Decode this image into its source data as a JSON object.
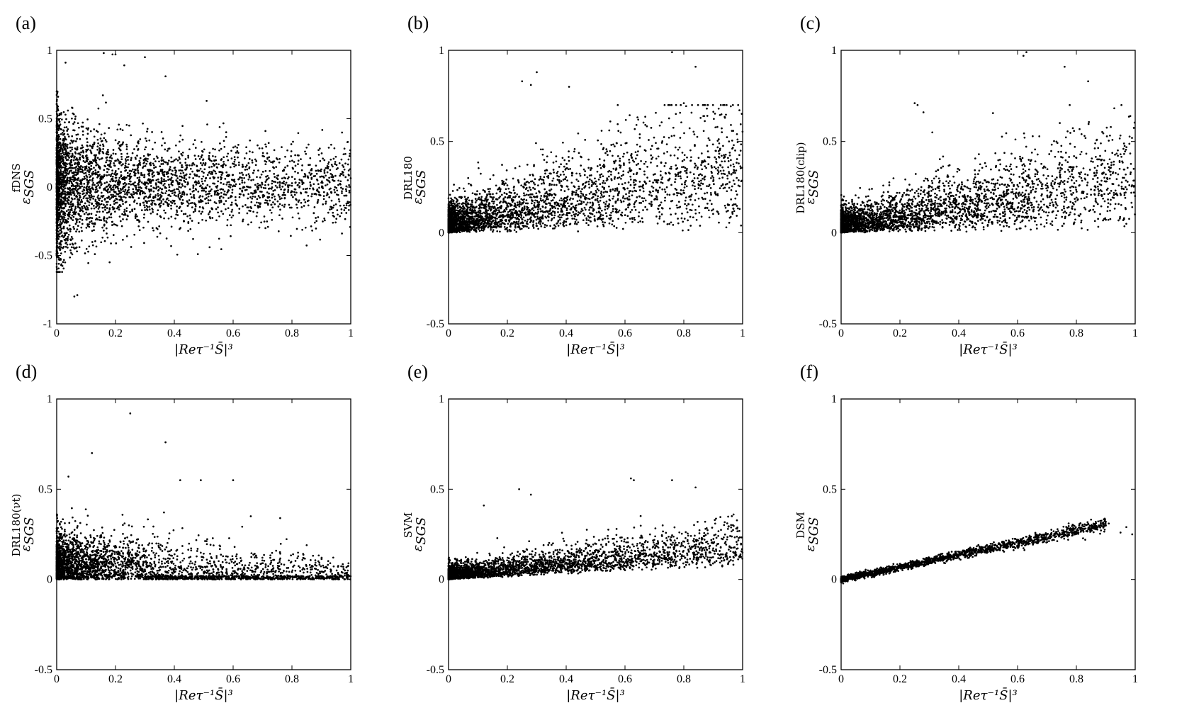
{
  "figure": {
    "marker_color": "#000000",
    "frame_color": "#000000"
  },
  "chart_data": [
    {
      "type": "scatter",
      "panel": "(a)",
      "xlabel": "|Reτ⁻¹S̄|³",
      "ylabel_symbol": "ε",
      "ylabel_sub": "SGS",
      "ylabel_sup": "fDNS",
      "xlim": [
        0,
        1
      ],
      "ylim": [
        -1,
        1
      ],
      "xticks": [
        "0",
        "0.2",
        "0.4",
        "0.6",
        "0.8",
        "1"
      ],
      "yticks": [
        "-1",
        "-0.5",
        "0",
        "0.5",
        "1"
      ],
      "ytick_values": [
        -1,
        -0.5,
        0,
        0.5,
        1
      ],
      "pattern": "symmetric",
      "n_points": 3500,
      "trend_slope": 0.0,
      "spread": 0.26,
      "points": [
        [
          0.16,
          0.98
        ],
        [
          0.19,
          0.97
        ],
        [
          0.2,
          0.97
        ],
        [
          0.3,
          0.95
        ],
        [
          0.03,
          0.91
        ],
        [
          0.37,
          0.81
        ],
        [
          0.23,
          0.89
        ],
        [
          0.51,
          0.63
        ],
        [
          0.74,
          0.27
        ],
        [
          0.71,
          0.41
        ],
        [
          0.99,
          0.33
        ],
        [
          0.92,
          0.14
        ],
        [
          0.94,
          -0.15
        ],
        [
          0.99,
          0.05
        ],
        [
          0.91,
          -0.23
        ],
        [
          0.71,
          -0.3
        ],
        [
          0.58,
          -0.28
        ],
        [
          0.48,
          -0.49
        ],
        [
          0.52,
          -0.44
        ],
        [
          0.06,
          -0.8
        ],
        [
          0.07,
          -0.79
        ],
        [
          0.18,
          -0.55
        ],
        [
          0.13,
          -0.49
        ],
        [
          0.62,
          0.18
        ],
        [
          0.8,
          0.01
        ]
      ]
    },
    {
      "type": "scatter",
      "panel": "(b)",
      "xlabel": "|Reτ⁻¹S̄|³",
      "ylabel_symbol": "ε",
      "ylabel_sub": "SGS",
      "ylabel_sup": "DRL180",
      "xlim": [
        0,
        1
      ],
      "ylim": [
        -0.5,
        1
      ],
      "xticks": [
        "0",
        "0.2",
        "0.4",
        "0.6",
        "0.8",
        "1"
      ],
      "yticks": [
        "-0.5",
        "0",
        "0.5",
        "1"
      ],
      "ytick_values": [
        -0.5,
        0,
        0.5,
        1
      ],
      "pattern": "positive",
      "n_points": 3200,
      "trend_slope": 0.3,
      "spread": 0.16,
      "points": [
        [
          0.76,
          0.99
        ],
        [
          0.84,
          0.91
        ],
        [
          0.3,
          0.88
        ],
        [
          0.25,
          0.83
        ],
        [
          0.28,
          0.81
        ],
        [
          0.41,
          0.8
        ],
        [
          0.94,
          0.63
        ],
        [
          0.8,
          0.71
        ],
        [
          0.91,
          0.39
        ],
        [
          0.97,
          0.48
        ],
        [
          0.99,
          0.13
        ],
        [
          0.98,
          0.3
        ],
        [
          0.65,
          0.52
        ],
        [
          0.55,
          0.61
        ]
      ]
    },
    {
      "type": "scatter",
      "panel": "(c)",
      "xlabel": "|Reτ⁻¹S̄|³",
      "ylabel_symbol": "ε",
      "ylabel_sub": "SGS",
      "ylabel_sup": "DRL180(clip)",
      "xlim": [
        0,
        1
      ],
      "ylim": [
        -0.5,
        1
      ],
      "xticks": [
        "0",
        "0.2",
        "0.4",
        "0.6",
        "0.8",
        "1"
      ],
      "yticks": [
        "-0.5",
        "0",
        "0.5",
        "1"
      ],
      "ytick_values": [
        -0.5,
        0,
        0.5,
        1
      ],
      "pattern": "positive",
      "n_points": 3200,
      "trend_slope": 0.24,
      "spread": 0.13,
      "points": [
        [
          0.62,
          0.97
        ],
        [
          0.63,
          0.99
        ],
        [
          0.76,
          0.91
        ],
        [
          0.84,
          0.83
        ],
        [
          0.25,
          0.71
        ],
        [
          0.26,
          0.7
        ],
        [
          0.28,
          0.66
        ],
        [
          0.31,
          0.55
        ],
        [
          0.87,
          0.51
        ],
        [
          0.96,
          0.46
        ],
        [
          0.98,
          0.26
        ],
        [
          0.99,
          0.14
        ],
        [
          0.8,
          0.41
        ],
        [
          0.9,
          0.32
        ]
      ]
    },
    {
      "type": "scatter",
      "panel": "(d)",
      "xlabel": "|Reτ⁻¹S̄|³",
      "ylabel_symbol": "ε",
      "ylabel_sub": "SGS",
      "ylabel_sup": "DRL180(νt)",
      "xlim": [
        0,
        1
      ],
      "ylim": [
        -0.5,
        1
      ],
      "xticks": [
        "0",
        "0.2",
        "0.4",
        "0.6",
        "0.8",
        "1"
      ],
      "yticks": [
        "-0.5",
        "0",
        "0.5",
        "1"
      ],
      "ytick_values": [
        -0.5,
        0,
        0.5,
        1
      ],
      "pattern": "decaying",
      "n_points": 3200,
      "trend_slope": 0.0,
      "spread": 0.2,
      "points": [
        [
          0.25,
          0.92
        ],
        [
          0.37,
          0.76
        ],
        [
          0.12,
          0.7
        ],
        [
          0.6,
          0.55
        ],
        [
          0.49,
          0.55
        ],
        [
          0.42,
          0.55
        ],
        [
          0.04,
          0.57
        ],
        [
          0.66,
          0.35
        ],
        [
          0.76,
          0.34
        ],
        [
          0.85,
          0.19
        ],
        [
          0.93,
          0.09
        ],
        [
          0.98,
          0.05
        ],
        [
          0.99,
          0.02
        ],
        [
          0.89,
          0.03
        ]
      ]
    },
    {
      "type": "scatter",
      "panel": "(e)",
      "xlabel": "|Reτ⁻¹S̄|³",
      "ylabel_symbol": "ε",
      "ylabel_sub": "SGS",
      "ylabel_sup": "SVM",
      "xlim": [
        0,
        1
      ],
      "ylim": [
        -0.5,
        1
      ],
      "xticks": [
        "0",
        "0.2",
        "0.4",
        "0.6",
        "0.8",
        "1"
      ],
      "yticks": [
        "-0.5",
        "0",
        "0.5",
        "1"
      ],
      "ytick_values": [
        -0.5,
        0,
        0.5,
        1
      ],
      "pattern": "weak",
      "n_points": 3000,
      "trend_slope": 0.14,
      "spread": 0.06,
      "points": [
        [
          0.62,
          0.56
        ],
        [
          0.63,
          0.55
        ],
        [
          0.76,
          0.55
        ],
        [
          0.84,
          0.51
        ],
        [
          0.24,
          0.5
        ],
        [
          0.28,
          0.47
        ],
        [
          0.12,
          0.41
        ],
        [
          0.95,
          0.28
        ],
        [
          0.98,
          0.17
        ],
        [
          0.99,
          0.13
        ],
        [
          0.9,
          0.2
        ]
      ]
    },
    {
      "type": "scatter",
      "panel": "(f)",
      "xlabel": "|Reτ⁻¹S̄|³",
      "ylabel_symbol": "ε",
      "ylabel_sub": "SGS",
      "ylabel_sup": "DSM",
      "xlim": [
        0,
        1
      ],
      "ylim": [
        -0.5,
        1
      ],
      "xticks": [
        "0",
        "0.2",
        "0.4",
        "0.6",
        "0.8",
        "1"
      ],
      "yticks": [
        "-0.5",
        "0",
        "0.5",
        "1"
      ],
      "ytick_values": [
        -0.5,
        0,
        0.5,
        1
      ],
      "pattern": "linear",
      "n_points": 1800,
      "trend_slope": 0.34,
      "spread": 0.012,
      "points": [
        [
          0.9,
          0.32
        ],
        [
          0.91,
          0.31
        ],
        [
          0.97,
          0.29
        ],
        [
          0.99,
          0.25
        ],
        [
          0.95,
          0.26
        ],
        [
          0.83,
          0.22
        ]
      ]
    }
  ]
}
